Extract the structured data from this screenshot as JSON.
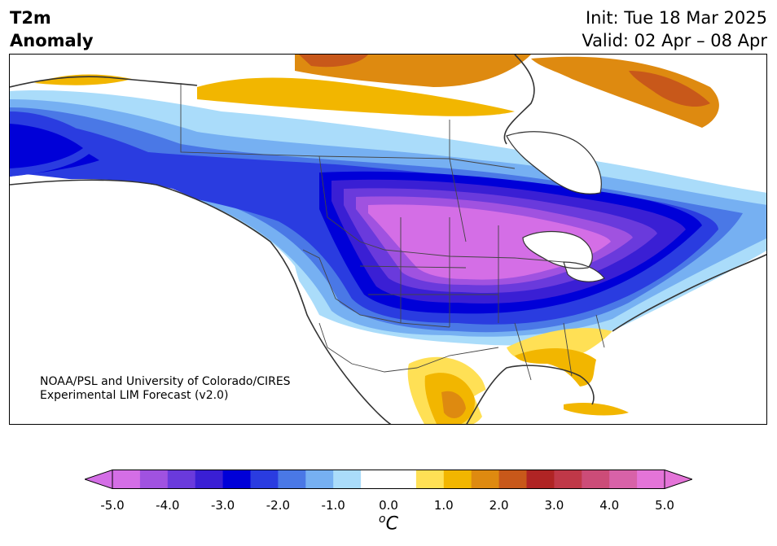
{
  "title": {
    "line1": "T2m",
    "line2": "Anomaly"
  },
  "header": {
    "init": "Init: Tue 18 Mar 2025",
    "valid": "Valid: 02 Apr – 08 Apr"
  },
  "credit": {
    "line1": "NOAA/PSL and University of Colorado/CIRES",
    "line2": "Experimental LIM Forecast (v2.0)"
  },
  "colorbar": {
    "units_base": "C",
    "units_sup": "o",
    "min": -5.0,
    "max": 5.0,
    "tick_labels": [
      "-5.0",
      "-4.0",
      "-3.0",
      "-2.0",
      "-1.0",
      "0.0",
      "1.0",
      "2.0",
      "3.0",
      "4.0",
      "5.0"
    ],
    "bins": [
      {
        "lo": -5.0,
        "hi": -4.5,
        "color": "#d46ee6"
      },
      {
        "lo": -4.5,
        "hi": -4.0,
        "color": "#a052e0"
      },
      {
        "lo": -4.0,
        "hi": -3.5,
        "color": "#6a3adc"
      },
      {
        "lo": -3.5,
        "hi": -3.0,
        "color": "#3a1fd4"
      },
      {
        "lo": -3.0,
        "hi": -2.5,
        "color": "#0000d8"
      },
      {
        "lo": -2.5,
        "hi": -2.0,
        "color": "#2a3ce0"
      },
      {
        "lo": -2.0,
        "hi": -1.5,
        "color": "#4a78e6"
      },
      {
        "lo": -1.5,
        "hi": -1.0,
        "color": "#76b0f2"
      },
      {
        "lo": -1.0,
        "hi": -0.5,
        "color": "#aadcfa"
      },
      {
        "lo": -0.5,
        "hi": 0.5,
        "color": "#ffffff"
      },
      {
        "lo": 0.5,
        "hi": 1.0,
        "color": "#ffe055"
      },
      {
        "lo": 1.0,
        "hi": 1.5,
        "color": "#f2b600"
      },
      {
        "lo": 1.5,
        "hi": 2.0,
        "color": "#de8a10"
      },
      {
        "lo": 2.0,
        "hi": 2.5,
        "color": "#c8581a"
      },
      {
        "lo": 2.5,
        "hi": 3.0,
        "color": "#b02424"
      },
      {
        "lo": 3.0,
        "hi": 3.5,
        "color": "#c03848"
      },
      {
        "lo": 3.5,
        "hi": 4.0,
        "color": "#cc4c78"
      },
      {
        "lo": 4.0,
        "hi": 4.5,
        "color": "#d862a8"
      },
      {
        "lo": 4.5,
        "hi": 5.0,
        "color": "#e474d8"
      }
    ],
    "under_color": "#d46ee6",
    "over_color": "#e474d8"
  }
}
